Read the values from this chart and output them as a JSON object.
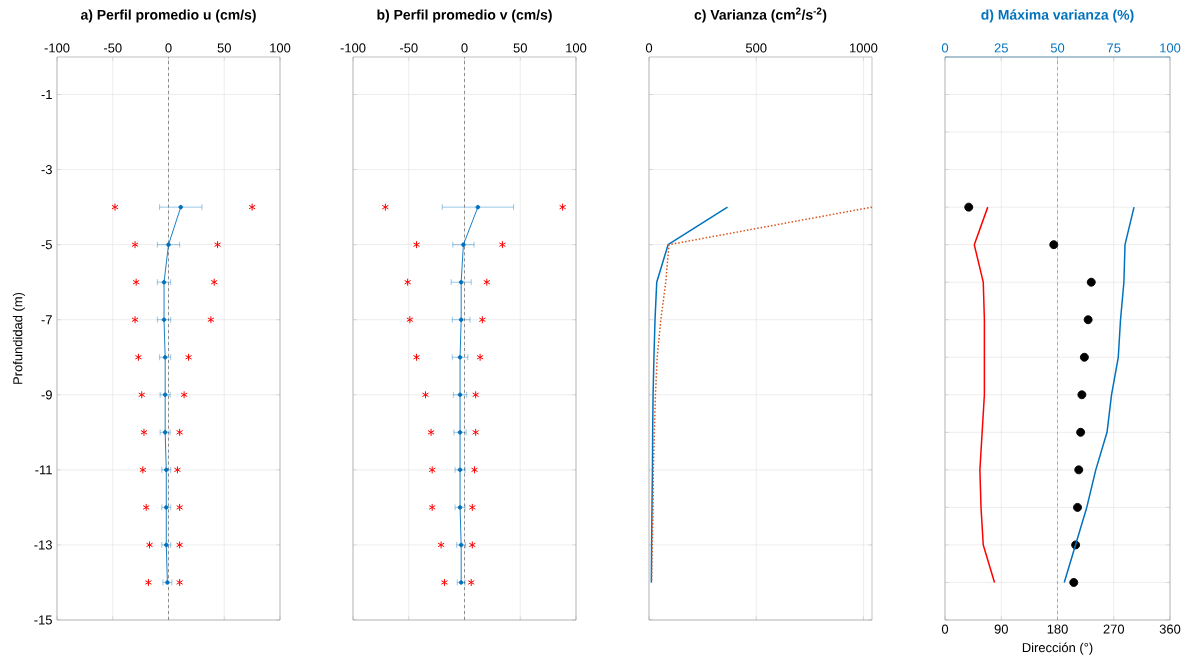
{
  "chart_data": [
    {
      "type": "line",
      "title": "a) Perfil promedio u (cm/s)",
      "ylabel": "Profundidad (m)",
      "xlim": [
        -100,
        100
      ],
      "xticks": [
        -100,
        -50,
        0,
        50,
        100
      ],
      "ylim": [
        -15,
        0
      ],
      "yticks": [
        -15,
        -13,
        -11,
        -9,
        -7,
        -5,
        -3,
        -1
      ],
      "grid": true,
      "ref_lines": [
        {
          "axis": "x",
          "value": 0,
          "color": "#808080",
          "line_style": "dashed"
        }
      ],
      "series": [
        {
          "color": "#0072bd",
          "type": "line",
          "marker": "circle",
          "x": [
            11,
            0,
            -4,
            -4,
            -3,
            -3,
            -3,
            -2,
            -2,
            -2,
            -1
          ],
          "values": [
            -4,
            -5,
            -6,
            -7,
            -8,
            -9,
            -10,
            -11,
            -12,
            -13,
            -14
          ],
          "xerrors": [
            19,
            10,
            6,
            6,
            5,
            4.5,
            4.5,
            4,
            4,
            4,
            4
          ]
        },
        {
          "color": "#ff0000",
          "type": "scatter",
          "marker": "cross",
          "x": [
            -48,
            -30,
            -29,
            -30,
            -27,
            -24,
            -22,
            -23,
            -20,
            -17,
            -18
          ],
          "values": [
            -4,
            -5,
            -6,
            -7,
            -8,
            -9,
            -10,
            -11,
            -12,
            -13,
            -14
          ]
        },
        {
          "color": "#ff0000",
          "type": "scatter",
          "marker": "cross",
          "x": [
            75,
            44,
            41,
            38,
            18,
            14,
            10,
            8,
            10,
            10,
            10
          ],
          "values": [
            -4,
            -5,
            -6,
            -7,
            -8,
            -9,
            -10,
            -11,
            -12,
            -13,
            -14
          ]
        }
      ]
    },
    {
      "type": "line",
      "title": "b) Perfil promedio v (cm/s)",
      "xlim": [
        -100,
        100
      ],
      "xticks": [
        -100,
        -50,
        0,
        50,
        100
      ],
      "ylim": [
        -15,
        0
      ],
      "yticks": [
        -15,
        -13,
        -11,
        -9,
        -7,
        -5,
        -3,
        -1
      ],
      "grid": true,
      "tick_labels": "x",
      "ref_lines": [
        {
          "axis": "x",
          "value": 0,
          "color": "#808080",
          "line_style": "dashed"
        }
      ],
      "series": [
        {
          "color": "#0072bd",
          "type": "line",
          "marker": "circle",
          "x": [
            12,
            -1,
            -3,
            -3,
            -4,
            -4,
            -4,
            -4,
            -4,
            -3,
            -3
          ],
          "values": [
            -4,
            -5,
            -6,
            -7,
            -8,
            -9,
            -10,
            -11,
            -12,
            -13,
            -14
          ],
          "xerrors": [
            32,
            9.5,
            9,
            8,
            7,
            6,
            5.5,
            4.5,
            4.5,
            4,
            3.5
          ]
        },
        {
          "color": "#ff0000",
          "type": "scatter",
          "marker": "cross",
          "x": [
            -71,
            -43,
            -51,
            -49,
            -43,
            -35,
            -30,
            -29,
            -29,
            -21,
            -18
          ],
          "values": [
            -4,
            -5,
            -6,
            -7,
            -8,
            -9,
            -10,
            -11,
            -12,
            -13,
            -14
          ]
        },
        {
          "color": "#ff0000",
          "type": "scatter",
          "marker": "cross",
          "x": [
            88,
            34,
            20,
            16,
            14,
            10,
            10,
            9,
            7,
            7,
            6
          ],
          "values": [
            -4,
            -5,
            -6,
            -7,
            -8,
            -9,
            -10,
            -11,
            -12,
            -13,
            -14
          ]
        }
      ]
    },
    {
      "type": "line",
      "title": "c) Varianza (cm$^{2}$/s$^{-2}$)",
      "xlim": [
        0,
        1040
      ],
      "xticks": [
        0,
        500,
        1000
      ],
      "ylim": [
        -15,
        0
      ],
      "yticks": [
        -15,
        -13,
        -11,
        -9,
        -7,
        -5,
        -3,
        -1
      ],
      "grid": true,
      "tick_labels": "x",
      "series": [
        {
          "color": "#0072bd",
          "line_style": "solid",
          "x": [
            366,
            89,
            36,
            28,
            23,
            19,
            17,
            16,
            14,
            12,
            11
          ],
          "values": [
            -4,
            -5,
            -6,
            -7,
            -8,
            -9,
            -10,
            -11,
            -12,
            -13,
            -14
          ]
        },
        {
          "color": "#d95319",
          "line_style": "dotted",
          "x": [
            1040,
            93,
            78,
            55,
            38,
            30,
            25,
            20,
            19,
            15,
            12
          ],
          "values": [
            -4,
            -5,
            -6,
            -7,
            -8,
            -9,
            -10,
            -11,
            -12,
            -13,
            -14
          ]
        }
      ]
    },
    {
      "type": "line",
      "title": "d) Máxima varianza (%)",
      "xlabel": "Dirección (°)",
      "xlim": [
        0,
        360
      ],
      "xticks": [
        0,
        90,
        180,
        270,
        360
      ],
      "x2lim": [
        0,
        100
      ],
      "x2ticks": [
        0,
        25,
        50,
        75,
        100
      ],
      "ylim": [
        -15,
        0
      ],
      "yticks": [
        -15,
        -14,
        -13,
        -12,
        -11,
        -10,
        -9,
        -8,
        -7,
        -6,
        -5,
        -4,
        -3,
        -2,
        -1,
        0
      ],
      "grid": true,
      "tick_labels": "x",
      "ref_lines": [
        {
          "axis": "x",
          "value": 180,
          "color": "#a0a0a0",
          "line_style": "dashed"
        }
      ],
      "series": [
        {
          "color": "#0072bd",
          "type": "line",
          "axis": "x2",
          "x": [
            84,
            80,
            79.5,
            78,
            77,
            74,
            72,
            67,
            63,
            58,
            53
          ],
          "values": [
            -4,
            -5,
            -6,
            -7,
            -8,
            -9,
            -10,
            -11,
            -12,
            -13,
            -14
          ]
        },
        {
          "color": "#ff0000",
          "type": "line",
          "axis": "x2",
          "x": [
            19,
            13,
            17,
            17.5,
            17.5,
            17.5,
            16.5,
            15.5,
            16,
            17,
            22
          ],
          "values": [
            -4,
            -5,
            -6,
            -7,
            -8,
            -9,
            -10,
            -11,
            -12,
            -13,
            -14
          ]
        },
        {
          "color": "#000000",
          "type": "scatter",
          "marker": "circle",
          "x": [
            38,
            174,
            234,
            229,
            223,
            219,
            217,
            214,
            212,
            209,
            206
          ],
          "values": [
            -4,
            -5,
            -6,
            -7,
            -8,
            -9,
            -10,
            -11,
            -12,
            -13,
            -14
          ]
        }
      ]
    }
  ]
}
